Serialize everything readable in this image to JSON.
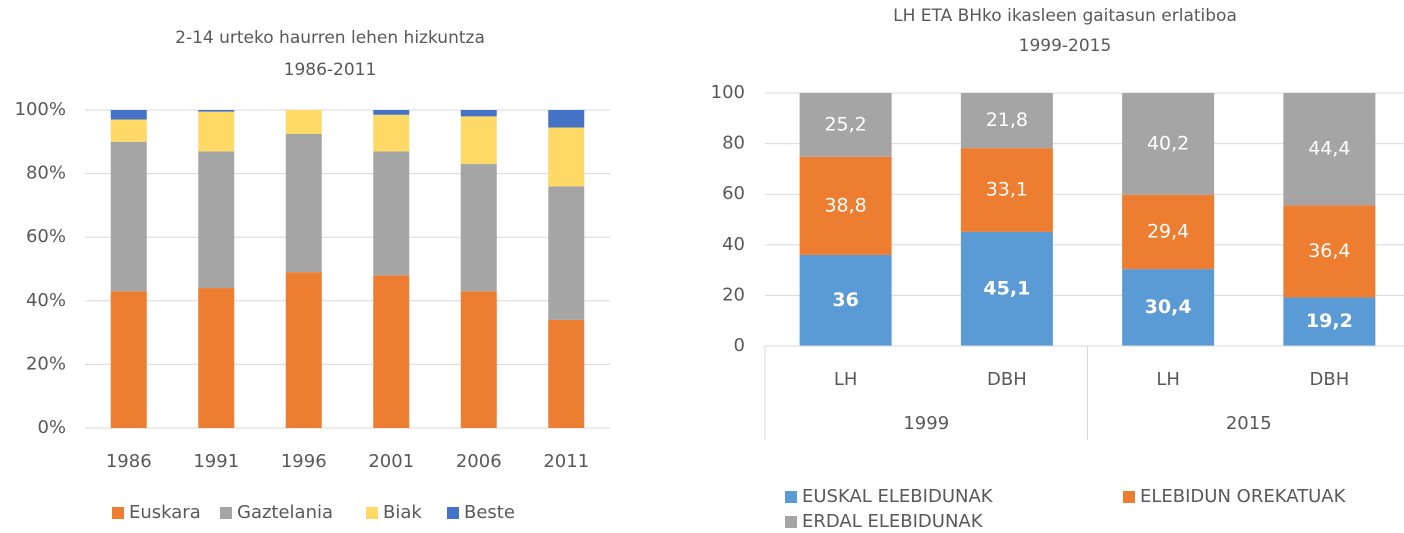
{
  "chart_data": [
    {
      "type": "bar",
      "stacked": true,
      "title": "2-14 urteko haurren lehen hizkuntza",
      "subtitle": "1986-2011",
      "categories": [
        "1986",
        "1991",
        "1996",
        "2001",
        "2006",
        "2011"
      ],
      "series": [
        {
          "name": "Euskara",
          "color": "#ed7d31",
          "values": [
            43,
            44,
            49,
            48,
            43,
            34
          ]
        },
        {
          "name": "Gaztelania",
          "color": "#a5a5a5",
          "values": [
            47,
            43,
            43.5,
            39,
            40,
            42
          ]
        },
        {
          "name": "Biak",
          "color": "#ffd966",
          "values": [
            7,
            12.5,
            7.5,
            11.5,
            15,
            18.5
          ]
        },
        {
          "name": "Beste",
          "color": "#4472c4",
          "values": [
            3,
            0.5,
            0,
            1.5,
            2,
            5.5
          ]
        }
      ],
      "ylim": [
        0,
        100
      ],
      "yticks": [
        {
          "value": 0,
          "label": "0%"
        },
        {
          "value": 20,
          "label": "20%"
        },
        {
          "value": 40,
          "label": "40%"
        },
        {
          "value": 60,
          "label": "60%"
        },
        {
          "value": 80,
          "label": "80%"
        },
        {
          "value": 100,
          "label": "100%"
        }
      ],
      "grid": true,
      "legend": "bottom"
    },
    {
      "type": "bar",
      "stacked": true,
      "title": "LH ETA BHko ikasleen gaitasun erlatiboa",
      "subtitle": "1999-2015",
      "categories": [
        "LH",
        "DBH",
        "LH",
        "DBH"
      ],
      "groups": [
        "1999",
        "2015"
      ],
      "series": [
        {
          "name": "EUSKAL ELEBIDUNAK",
          "color": "#5b9bd5",
          "values": [
            36,
            45.1,
            30.4,
            19.2
          ],
          "value_labels": [
            "36",
            "45,1",
            "30,4",
            "19,2"
          ]
        },
        {
          "name": "ELEBIDUN OREKATUAK",
          "color": "#ed7d31",
          "values": [
            38.8,
            33.1,
            29.4,
            36.4
          ],
          "value_labels": [
            "38,8",
            "33,1",
            "29,4",
            "36,4"
          ]
        },
        {
          "name": "ERDAL ELEBIDUNAK",
          "color": "#a5a5a5",
          "values": [
            25.2,
            21.8,
            40.2,
            44.4
          ],
          "value_labels": [
            "25,2",
            "21,8",
            "40,2",
            "44,4"
          ]
        }
      ],
      "ylim": [
        0,
        100
      ],
      "yticks": [
        0,
        20,
        40,
        60,
        80,
        100
      ],
      "grid": true,
      "legend": "bottom"
    }
  ]
}
